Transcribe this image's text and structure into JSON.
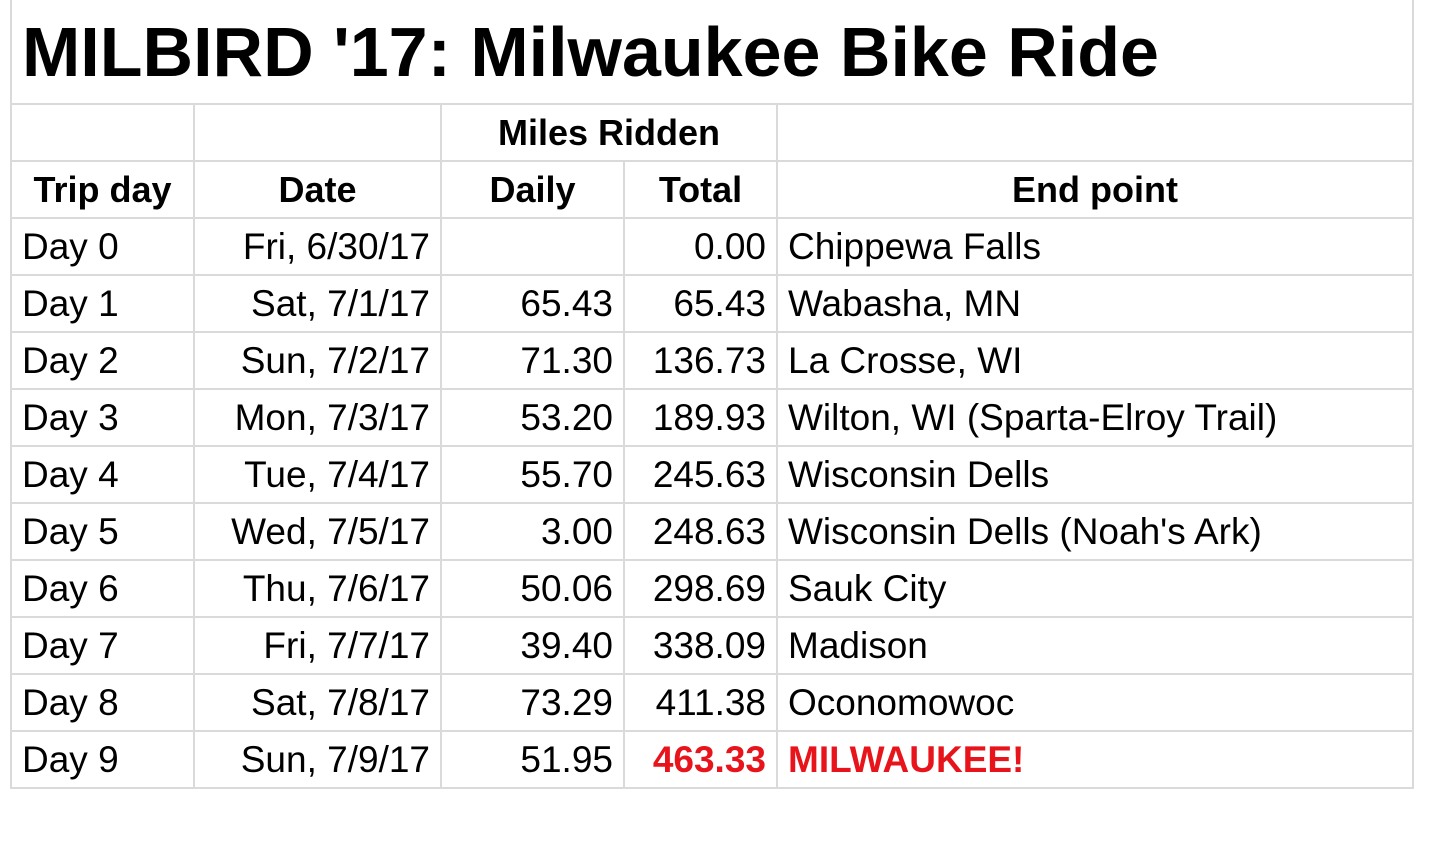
{
  "title": "MILBIRD '17: Milwaukee Bike Ride",
  "header": {
    "group": "Miles Ridden",
    "columns": [
      "Trip day",
      "Date",
      "Daily",
      "Total",
      "End point"
    ]
  },
  "table": {
    "rows": [
      [
        "Day 0",
        "Fri, 6/30/17",
        null,
        "0.00",
        "Chippewa Falls"
      ],
      [
        "Day 1",
        "Sat, 7/1/17",
        "65.43",
        "65.43",
        "Wabasha, MN"
      ],
      [
        "Day 2",
        "Sun, 7/2/17",
        "71.30",
        "136.73",
        "La Crosse, WI"
      ],
      [
        "Day 3",
        "Mon, 7/3/17",
        "53.20",
        "189.93",
        "Wilton, WI (Sparta-Elroy Trail)"
      ],
      [
        "Day 4",
        "Tue, 7/4/17",
        "55.70",
        "245.63",
        "Wisconsin Dells"
      ],
      [
        "Day 5",
        "Wed, 7/5/17",
        "3.00",
        "248.63",
        "Wisconsin Dells (Noah's Ark)"
      ],
      [
        "Day 6",
        "Thu, 7/6/17",
        "50.06",
        "298.69",
        "Sauk City"
      ],
      [
        "Day 7",
        "Fri, 7/7/17",
        "39.40",
        "338.09",
        "Madison"
      ],
      [
        "Day 8",
        "Sat, 7/8/17",
        "73.29",
        "411.38",
        "Oconomowoc"
      ],
      [
        "Day 9",
        "Sun, 7/9/17",
        "51.95",
        "463.33",
        "MILWAUKEE!"
      ]
    ]
  }
}
